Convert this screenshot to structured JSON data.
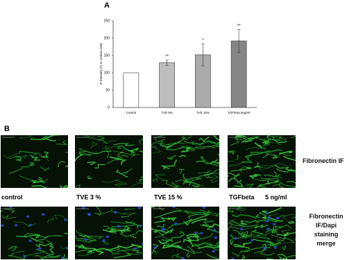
{
  "chart_data": {
    "type": "bar",
    "panel_label": "A",
    "y_label": "IF intensity (% to control=100)",
    "categories": [
      "Control",
      "TVE 8%",
      "TVE 15%",
      "TGFbeta 5ng/ml"
    ],
    "values": [
      100,
      129,
      152,
      192
    ],
    "errors": [
      0,
      8,
      32,
      33
    ],
    "annotations": [
      null,
      "**",
      "*",
      "**"
    ],
    "colors": [
      "#ffffff",
      "#bdbdbd",
      "#ababab",
      "#858585"
    ],
    "ylim": [
      0,
      250
    ],
    "yticks": [
      0,
      50,
      100,
      150,
      200,
      250
    ],
    "grid": false
  },
  "panel_b": {
    "panel_label": "B",
    "column_labels": [
      "control",
      "TVE 3 %",
      "TVE 15 %",
      "TGFbeta",
      "5 ng/ml"
    ],
    "row_labels": [
      "Fibronectin IF",
      "Fibronectin IF/Dapi staining merge"
    ]
  }
}
